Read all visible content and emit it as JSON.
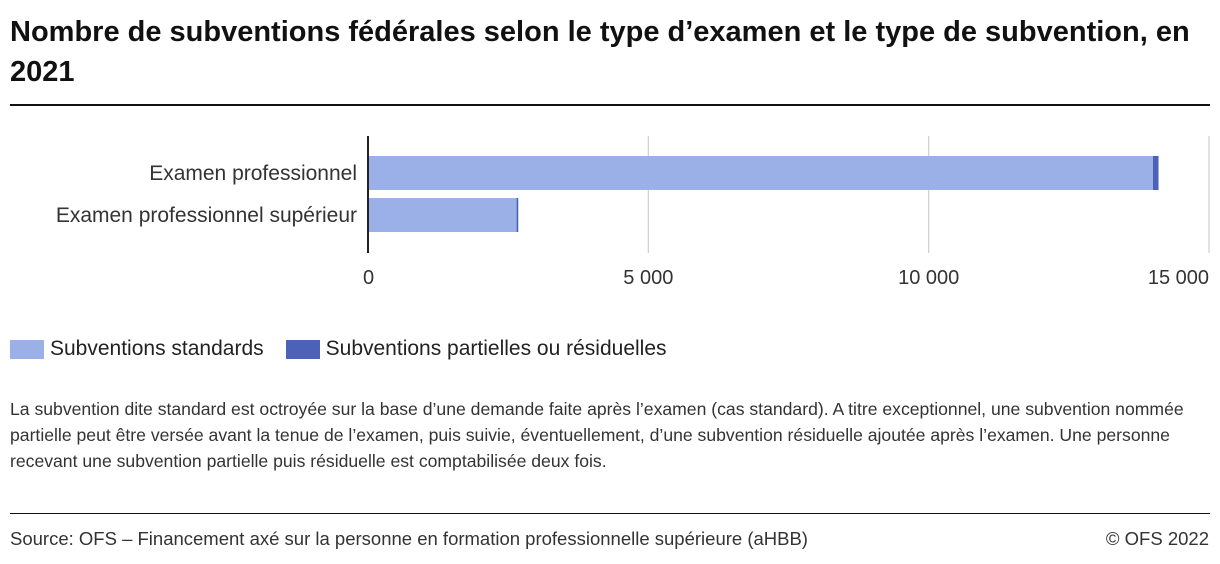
{
  "title": "Nombre de subventions fédérales selon le type d’examen et le type de subvention, en 2021",
  "chart_data": {
    "type": "bar",
    "orientation": "horizontal",
    "stacked": true,
    "categories": [
      "Examen professionnel",
      "Examen professionnel supérieur"
    ],
    "series": [
      {
        "name": "Subventions standards",
        "values": [
          14000,
          2650
        ],
        "color": "#9bb0e6"
      },
      {
        "name": "Subventions partielles ou résiduelles",
        "values": [
          100,
          30
        ],
        "color": "#4b62b8"
      }
    ],
    "xlim": [
      0,
      15000
    ],
    "xticks": [
      0,
      5000,
      10000,
      15000
    ],
    "xtick_labels": [
      "0",
      "5 000",
      "10 000",
      "15 000"
    ],
    "grid": true,
    "legend_position": "bottom-left"
  },
  "legend": {
    "items": [
      {
        "label": "Subventions standards",
        "color": "#9bb0e6"
      },
      {
        "label": "Subventions partielles ou résiduelles",
        "color": "#4b62b8"
      }
    ]
  },
  "note": "La subvention dite standard est octroyée sur la base d’une demande faite après l’examen (cas standard). A titre exceptionnel, une subvention nommée partielle peut être versée avant la tenue de l’examen, puis suivie, éventuellement, d’une subvention résiduelle ajoutée après l’examen. Une personne recevant une subvention partielle puis résiduelle est comptabilisée deux fois.",
  "source": "Source: OFS – Financement axé sur la personne en formation professionnelle supérieure (aHBB)",
  "copyright": "© OFS 2022"
}
